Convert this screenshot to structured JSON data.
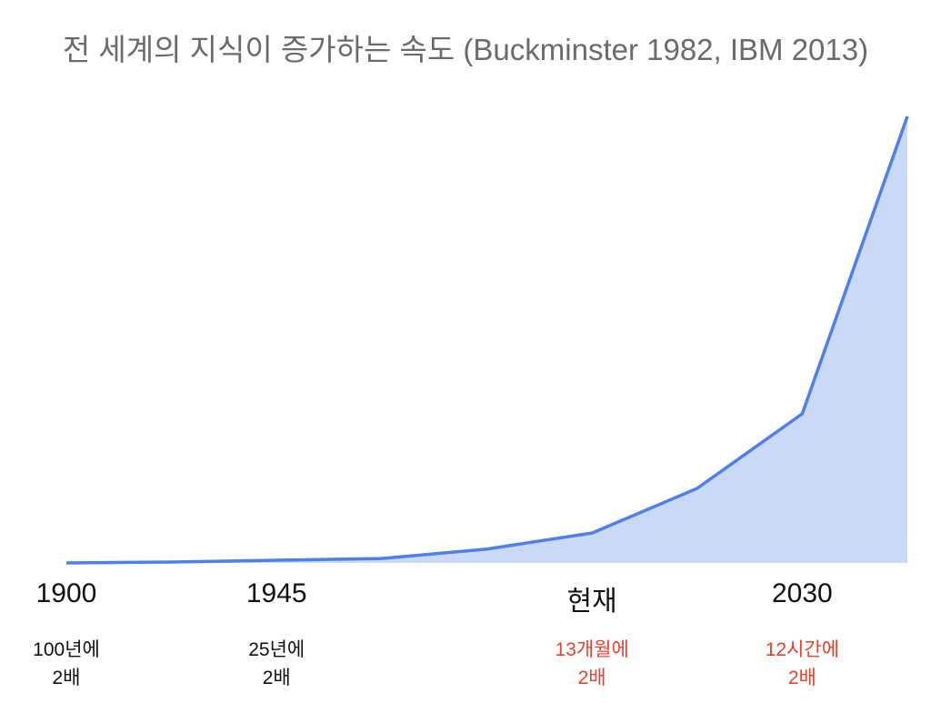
{
  "chart_data": {
    "type": "area",
    "title": "전 세계의 지식이 증가하는 속도 (Buckminster 1982, IBM 2013)",
    "xlabel": "",
    "ylabel": "",
    "x": [
      0,
      1,
      2,
      3,
      4,
      5,
      6,
      7,
      8
    ],
    "values": [
      0,
      0.2,
      0.6,
      1.0,
      3.1,
      6.7,
      16.7,
      33.4,
      100
    ],
    "ylim": [
      0,
      100
    ],
    "grid": false,
    "line_color": "#4f7fe8",
    "fill_color": "#c9d9f7",
    "tick_labels": [
      {
        "x": 0,
        "label": "1900",
        "note": [
          "100년에",
          "2배"
        ],
        "note_color": "#111111"
      },
      {
        "x": 2,
        "label": "1945",
        "note": [
          "25년에",
          "2배"
        ],
        "note_color": "#111111"
      },
      {
        "x": 5,
        "label": "현재",
        "note": [
          "13개월에",
          "2배"
        ],
        "note_color": "#e8432f"
      },
      {
        "x": 7,
        "label": "2030",
        "note": [
          "12시간에",
          "2배"
        ],
        "note_color": "#e8432f"
      }
    ]
  }
}
